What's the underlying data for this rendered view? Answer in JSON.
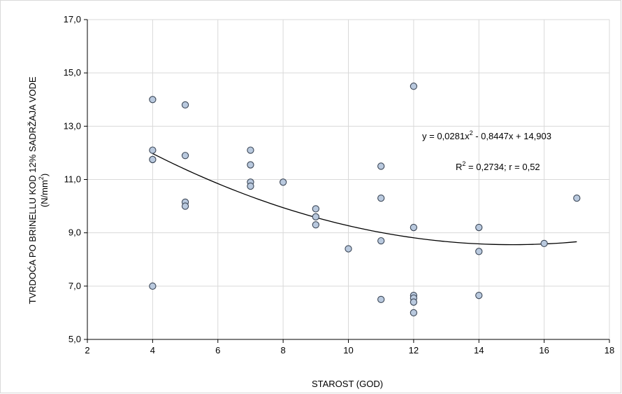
{
  "chart_data": {
    "type": "scatter",
    "title": "",
    "xlabel": "STAROST (GOD)",
    "ylabel_line1": "TVRDOĆA PO BRINELLU KOD 12% SADRŽAJA VODE",
    "ylabel_line2": "(N/mm",
    "ylabel_sup": "2",
    "ylabel_close": ")",
    "xlim": [
      2,
      18
    ],
    "ylim": [
      5,
      17
    ],
    "x_ticks": [
      2,
      4,
      6,
      8,
      10,
      12,
      14,
      16,
      18
    ],
    "y_ticks": [
      5,
      7,
      9,
      11,
      13,
      15,
      17
    ],
    "x_tick_labels": [
      "2",
      "4",
      "6",
      "8",
      "10",
      "12",
      "14",
      "16",
      "18"
    ],
    "y_tick_labels": [
      "5,0",
      "7,0",
      "9,0",
      "11,0",
      "13,0",
      "15,0",
      "17,0"
    ],
    "grid": true,
    "legend": "none",
    "colors": {
      "marker_fill": "#b9c9de",
      "marker_stroke": "#3b4656",
      "trendline": "#000000",
      "grid": "#d9d9d9"
    },
    "points": [
      {
        "x": 4,
        "y": 14.0
      },
      {
        "x": 4,
        "y": 12.1
      },
      {
        "x": 4,
        "y": 11.75
      },
      {
        "x": 4,
        "y": 7.0
      },
      {
        "x": 5,
        "y": 13.8
      },
      {
        "x": 5,
        "y": 11.9
      },
      {
        "x": 5,
        "y": 10.15
      },
      {
        "x": 5,
        "y": 10.0
      },
      {
        "x": 7,
        "y": 12.1
      },
      {
        "x": 7,
        "y": 11.55
      },
      {
        "x": 7,
        "y": 10.9
      },
      {
        "x": 7,
        "y": 10.75
      },
      {
        "x": 8,
        "y": 10.9
      },
      {
        "x": 9,
        "y": 9.9
      },
      {
        "x": 9,
        "y": 9.6
      },
      {
        "x": 9,
        "y": 9.3
      },
      {
        "x": 10,
        "y": 8.4
      },
      {
        "x": 11,
        "y": 11.5
      },
      {
        "x": 11,
        "y": 10.3
      },
      {
        "x": 11,
        "y": 8.7
      },
      {
        "x": 11,
        "y": 6.5
      },
      {
        "x": 12,
        "y": 14.5
      },
      {
        "x": 12,
        "y": 9.2
      },
      {
        "x": 12,
        "y": 6.65
      },
      {
        "x": 12,
        "y": 6.55
      },
      {
        "x": 12,
        "y": 6.4
      },
      {
        "x": 12,
        "y": 6.0
      },
      {
        "x": 14,
        "y": 9.2
      },
      {
        "x": 14,
        "y": 8.3
      },
      {
        "x": 14,
        "y": 6.65
      },
      {
        "x": 16,
        "y": 8.6
      },
      {
        "x": 17,
        "y": 10.3
      }
    ],
    "trendline": {
      "type": "polynomial",
      "coefficients": [
        0.0281,
        -0.8447,
        14.903
      ],
      "x_range": [
        4,
        17
      ]
    },
    "annotations": {
      "equation_part1": "y = 0,0281x",
      "equation_sup": "2",
      "equation_part2": " - 0,8447x + 14,903",
      "r2_part1": "R",
      "r2_sup": "2",
      "r2_part2": " = 0,2734; r = 0,52"
    }
  }
}
